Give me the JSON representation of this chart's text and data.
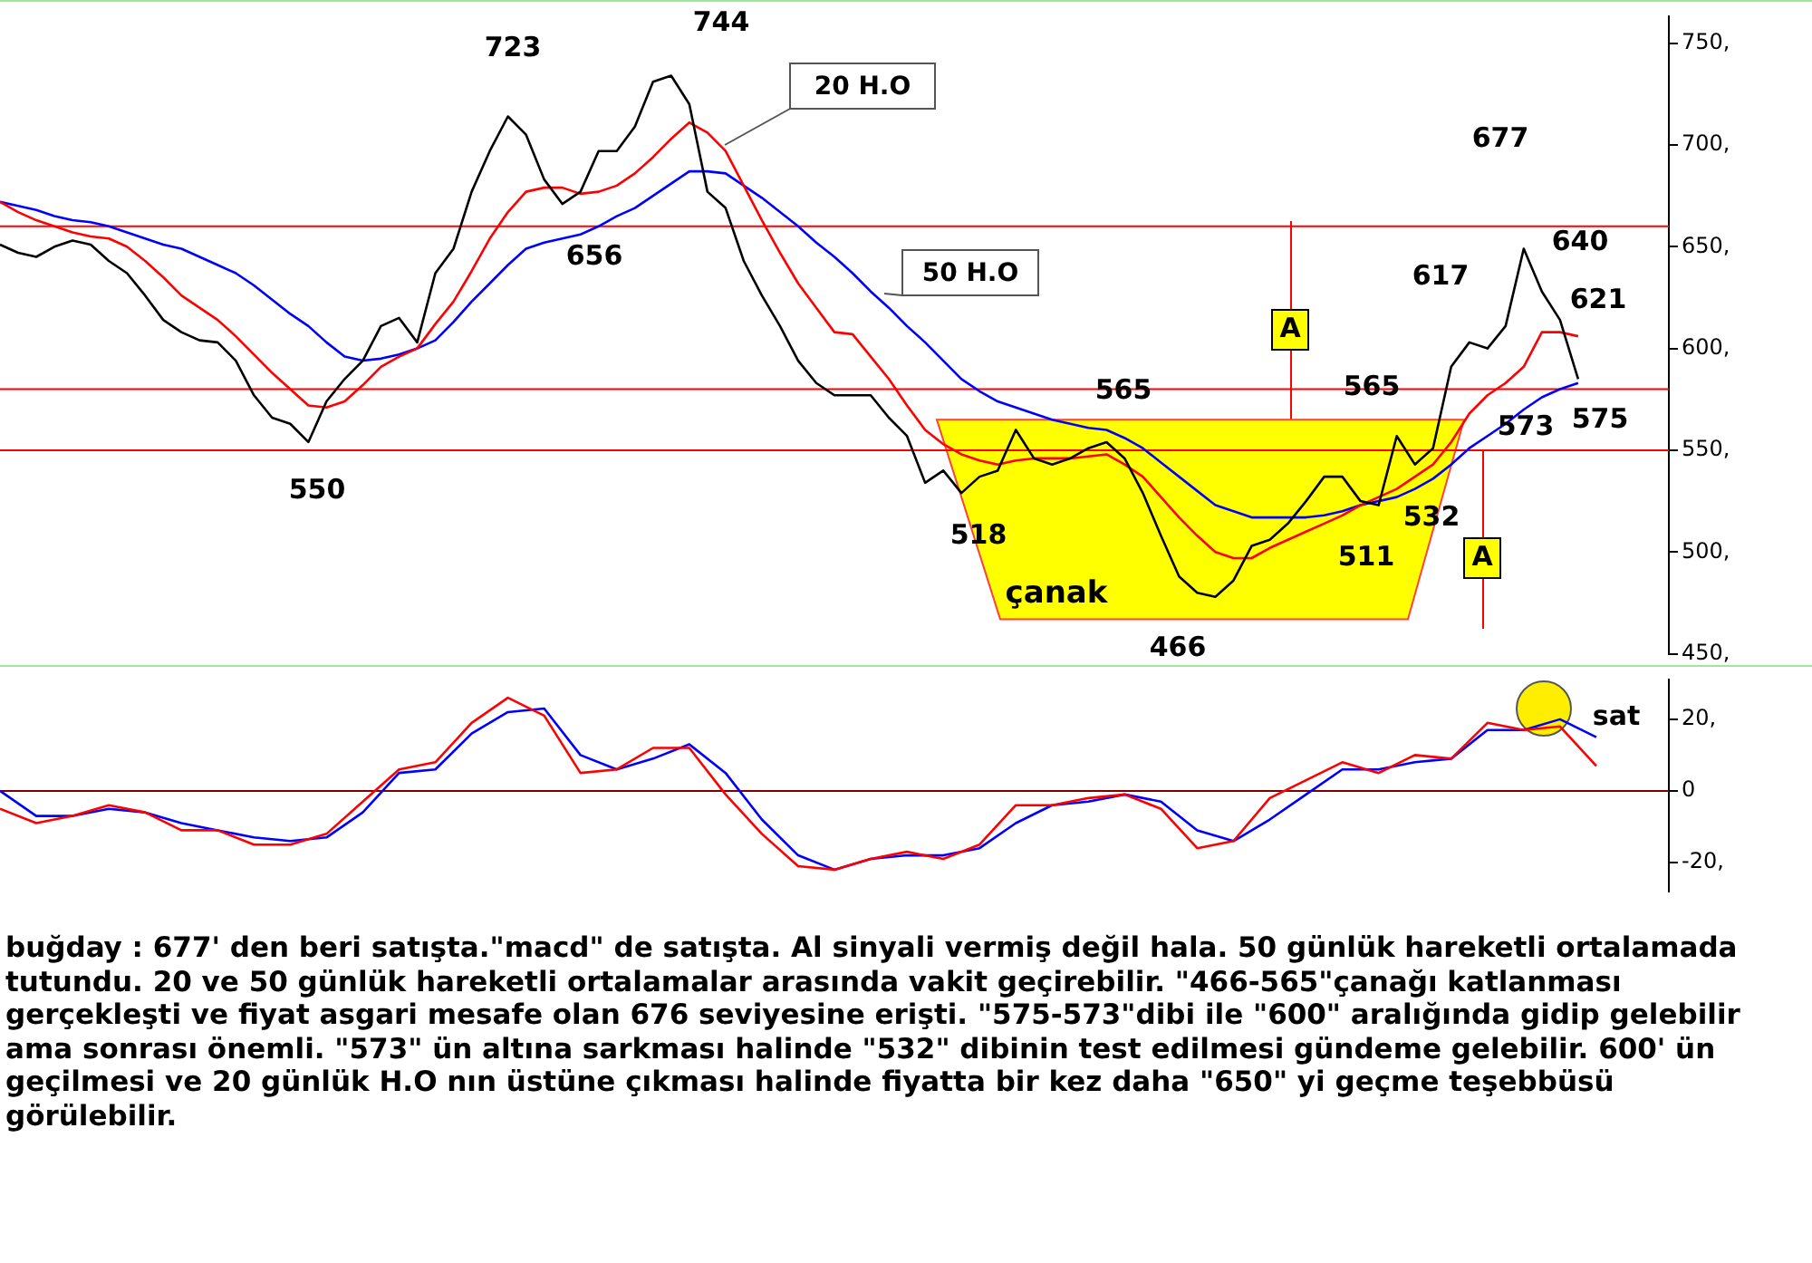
{
  "chart_data": [
    {
      "type": "line",
      "categories": [
        null,
        null,
        null,
        null,
        null,
        null,
        null,
        null,
        null,
        null,
        null,
        null,
        null,
        null,
        null,
        null,
        null,
        null,
        null,
        null,
        null,
        null,
        null,
        null,
        null,
        null,
        null,
        null,
        null,
        null,
        null,
        null,
        null,
        null,
        null,
        null,
        null,
        null,
        null,
        null,
        null,
        null,
        null,
        null,
        null,
        null,
        null,
        null,
        null,
        null,
        null,
        null,
        null,
        null,
        null,
        null,
        null,
        null,
        null,
        null,
        null,
        null,
        null,
        null,
        null,
        null,
        null,
        null,
        null,
        null,
        null,
        null,
        null,
        null,
        null,
        null,
        null,
        null,
        null,
        null,
        null,
        null,
        null,
        null,
        null,
        null,
        null,
        null,
        null,
        null,
        null,
        null,
        null
      ],
      "series": [
        {
          "color": "#000000",
          "values": [
            651,
            647,
            645,
            650,
            653,
            651,
            643,
            637,
            626,
            614,
            608,
            604,
            603,
            594,
            577,
            566,
            563,
            554,
            574,
            585,
            594,
            611,
            615,
            603,
            637,
            649,
            677,
            697,
            714,
            705,
            683,
            671,
            677,
            697,
            697,
            709,
            731,
            734,
            720,
            677,
            669,
            643,
            626,
            611,
            594,
            583,
            577,
            577,
            577,
            566,
            557,
            534,
            540,
            529,
            537,
            540,
            560,
            546,
            543,
            546,
            551,
            554,
            546,
            529,
            508,
            488,
            480,
            478,
            486,
            503,
            506,
            514,
            525,
            537,
            537,
            525,
            523,
            557,
            543,
            551,
            591,
            603,
            600,
            611,
            649,
            628,
            614,
            585,
            null,
            null,
            null,
            null,
            null
          ]
        },
        {
          "name": "20 H.O",
          "color": "#ff0000",
          "values": [
            672,
            667,
            663,
            660,
            657,
            655,
            654,
            650,
            643,
            635,
            626,
            620,
            614,
            606,
            597,
            588,
            580,
            572,
            571,
            574,
            582,
            591,
            596,
            600,
            612,
            623,
            638,
            654,
            667,
            677,
            679,
            679,
            676,
            677,
            680,
            686,
            694,
            703,
            711,
            706,
            697,
            680,
            663,
            647,
            632,
            620,
            608,
            607,
            596,
            585,
            572,
            560,
            553,
            548,
            545,
            543,
            545,
            546,
            546,
            546,
            547,
            548,
            543,
            537,
            527,
            517,
            508,
            500,
            497,
            497,
            502,
            506,
            510,
            514,
            518,
            523,
            527,
            531,
            537,
            543,
            554,
            568,
            577,
            583,
            591,
            608,
            608,
            606,
            null,
            null,
            null,
            null,
            null
          ]
        },
        {
          "name": "50 H.O",
          "color": "#0000ff",
          "values": [
            672,
            670,
            668,
            665,
            663,
            662,
            660,
            657,
            654,
            651,
            649,
            645,
            641,
            637,
            631,
            624,
            617,
            611,
            603,
            596,
            594,
            595,
            597,
            600,
            604,
            613,
            623,
            632,
            641,
            649,
            652,
            654,
            656,
            660,
            665,
            669,
            675,
            681,
            687,
            687,
            686,
            680,
            674,
            667,
            660,
            652,
            645,
            637,
            628,
            620,
            611,
            603,
            594,
            585,
            579,
            574,
            571,
            568,
            565,
            563,
            561,
            560,
            556,
            551,
            544,
            537,
            530,
            523,
            520,
            517,
            517,
            517,
            517,
            518,
            520,
            523,
            525,
            527,
            531,
            536,
            543,
            551,
            557,
            563,
            570,
            576,
            580,
            583,
            null,
            null,
            null,
            null,
            null
          ]
        }
      ],
      "ylim": [
        450,
        763
      ],
      "yticks": [
        {
          "value": 450,
          "label": "450,"
        },
        {
          "value": 500,
          "label": "500,"
        },
        {
          "value": 550,
          "label": "550,"
        },
        {
          "value": 600,
          "label": "600,"
        },
        {
          "value": 650,
          "label": "650,"
        },
        {
          "value": 700,
          "label": "700,"
        },
        {
          "value": 750,
          "label": "750,"
        }
      ],
      "tick_labels": "y",
      "grid": false,
      "legend": false,
      "marker": "none",
      "line_style": "solid",
      "ref_lines": [
        {
          "axis": "y",
          "value": 660,
          "color": "#ff0000"
        },
        {
          "axis": "y",
          "value": 550,
          "color": "#ff0000"
        },
        {
          "axis": "y",
          "value": 580,
          "color": "#ff0000"
        }
      ],
      "bands": [
        {
          "axis": "y",
          "from": 467,
          "to": 565,
          "label": "çanak",
          "color": "#ffff00"
        }
      ],
      "annotations": [
        "723",
        "744",
        "656",
        "550",
        "518",
        "565",
        "466",
        "565",
        "511",
        "532",
        "617",
        "677",
        "640",
        "621",
        "573",
        "575",
        "A",
        "A"
      ]
    },
    {
      "type": "line",
      "categories": [
        null,
        null,
        null,
        null,
        null,
        null,
        null,
        null,
        null,
        null,
        null,
        null,
        null,
        null,
        null,
        null,
        null,
        null,
        null,
        null,
        null,
        null,
        null,
        null,
        null,
        null,
        null,
        null,
        null,
        null,
        null,
        null,
        null,
        null,
        null,
        null,
        null,
        null,
        null,
        null,
        null,
        null,
        null,
        null,
        null,
        null,
        null
      ],
      "series": [
        {
          "color": "#ff0000",
          "values": [
            -5,
            -9,
            -7,
            -4,
            -6,
            -11,
            -11,
            -15,
            -15,
            -12,
            -3,
            6,
            8,
            19,
            26,
            21,
            5,
            6,
            12,
            12,
            -1,
            -12,
            -21,
            -22,
            -19,
            -17,
            -19,
            -15,
            -4,
            -4,
            -2,
            -1,
            -5,
            -16,
            -14,
            -2,
            3,
            8,
            5,
            10,
            9,
            19,
            17,
            18,
            7,
            null,
            null
          ]
        },
        {
          "color": "#0000ff",
          "values": [
            0,
            -7,
            -7,
            -5,
            -6,
            -9,
            -11,
            -13,
            -14,
            -13,
            -6,
            5,
            6,
            16,
            22,
            23,
            10,
            6,
            9,
            13,
            5,
            -8,
            -18,
            -22,
            -19,
            -18,
            -18,
            -16,
            -9,
            -4,
            -3,
            -1,
            -3,
            -11,
            -14,
            -8,
            -1,
            6,
            6,
            8,
            9,
            17,
            17,
            20,
            15,
            null,
            null
          ]
        }
      ],
      "ylim": [
        -28,
        31
      ],
      "yticks": [
        {
          "value": -20,
          "label": "-20,"
        },
        0,
        {
          "value": 20,
          "label": "20,"
        }
      ],
      "tick_labels": "y",
      "grid": false,
      "legend": false,
      "marker": "none",
      "line_style": "solid",
      "ref_lines": [
        {
          "axis": "y",
          "value": 0,
          "color": "#800000"
        }
      ],
      "annotations": [
        "sat",
        "buğday : 677' den beri satışta.\"macd\" de satışta. Al sinyali vermiş değil hala. 50 günlük hareketli ortalamada tutundu. 20 ve 50 günlük hareketli ortalamalar arasında vakit geçirebilir. \"466-565\"çanağı katlanması gerçekleşti ve fiyat asgari mesafe olan 676 seviyesine erişti. \"575-573\"dibi ile \"600\" aralığında gidip gelebilir ama sonrası önemli. \"573\" ün altına sarkması halinde \"532\" dibinin test edilmesi gündeme gelebilir. 600' ün geçilmesi ve 20 günlük H.O nın üstüne çıkması halinde fiyatta bir kez daha \"650\" yi geçme teşebbüsü görülebilir."
      ]
    }
  ]
}
